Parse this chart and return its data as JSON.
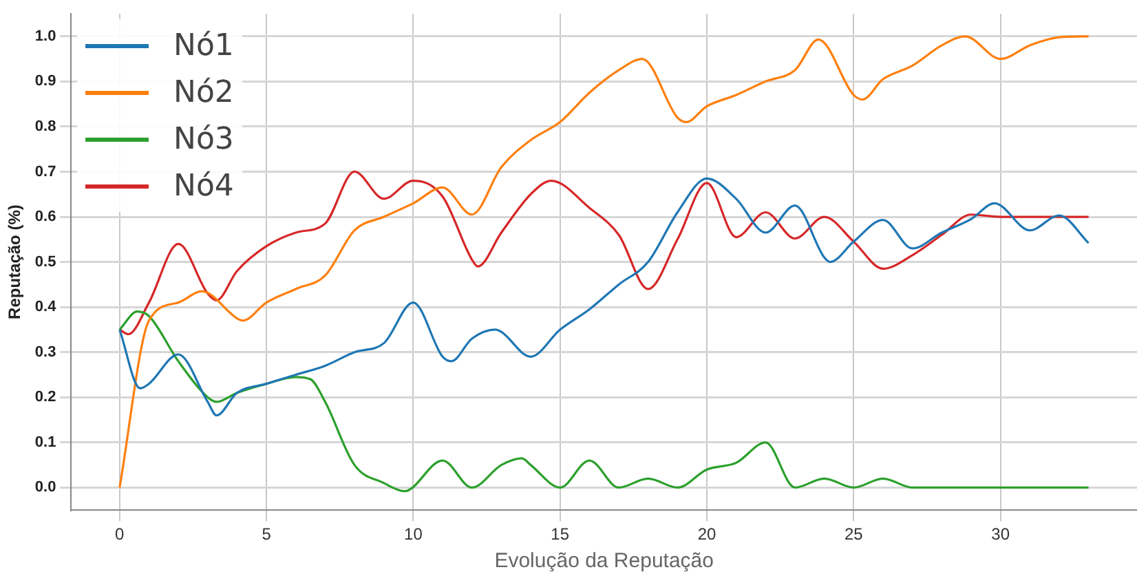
{
  "chart_data": {
    "type": "line",
    "xlabel": "Evolução da Reputação",
    "ylabel": "Reputação (%)",
    "xlim": [
      -1.65,
      34.65
    ],
    "ylim": [
      -0.05,
      1.05
    ],
    "xticks": [
      0,
      5,
      10,
      15,
      20,
      25,
      30
    ],
    "yticks": [
      {
        "value": 0,
        "label": "0.0"
      },
      {
        "value": 0.1,
        "label": "0.1"
      },
      {
        "value": 0.2,
        "label": "0.2"
      },
      {
        "value": 0.3,
        "label": "0.3"
      },
      {
        "value": 0.4,
        "label": "0.4"
      },
      {
        "value": 0.5,
        "label": "0.5"
      },
      {
        "value": 0.6,
        "label": "0.6"
      },
      {
        "value": 0.7,
        "label": "0.7"
      },
      {
        "value": 0.8,
        "label": "0.8"
      },
      {
        "value": 0.9,
        "label": "0.9"
      },
      {
        "value": 1,
        "label": "1.0"
      }
    ],
    "grid": true,
    "legend": "top left",
    "marker": "none",
    "line_style": "solid",
    "series": [
      {
        "name": "Nó1",
        "color": "#1f77b4",
        "x": [
          0,
          0.7,
          1,
          2,
          3,
          3.3,
          4,
          5,
          6,
          7,
          8,
          9,
          10,
          11,
          11.3,
          12,
          12.8,
          13,
          14,
          15,
          16,
          17,
          18,
          19,
          20,
          21,
          22,
          23,
          24,
          24.2,
          25,
          26,
          27,
          28,
          29,
          29.8,
          31,
          32,
          33
        ],
        "values": [
          0.35,
          0.22,
          0.23,
          0.295,
          0.19,
          0.16,
          0.21,
          0.23,
          0.25,
          0.27,
          0.3,
          0.32,
          0.41,
          0.29,
          0.28,
          0.33,
          0.35,
          0.345,
          0.29,
          0.35,
          0.395,
          0.45,
          0.5,
          0.61,
          0.685,
          0.64,
          0.565,
          0.625,
          0.51,
          0.5,
          0.545,
          0.593,
          0.53,
          0.565,
          0.595,
          0.63,
          0.57,
          0.603,
          0.542
        ]
      },
      {
        "name": "Nó2",
        "color": "#ff7f0e",
        "x": [
          0,
          1,
          2,
          2.8,
          4,
          4.2,
          5,
          6,
          7,
          8,
          9,
          10,
          11,
          12,
          13,
          14,
          15,
          16,
          17,
          17.8,
          19,
          19.3,
          20,
          21,
          22,
          23,
          23.8,
          25,
          25.3,
          26,
          27,
          28,
          28.8,
          30,
          31,
          32,
          33
        ],
        "values": [
          0,
          0.37,
          0.41,
          0.435,
          0.375,
          0.37,
          0.41,
          0.44,
          0.47,
          0.57,
          0.6,
          0.63,
          0.665,
          0.605,
          0.71,
          0.77,
          0.81,
          0.875,
          0.925,
          0.95,
          0.82,
          0.81,
          0.845,
          0.87,
          0.9,
          0.925,
          0.993,
          0.87,
          0.86,
          0.905,
          0.935,
          0.98,
          1.0,
          0.95,
          0.98,
          0.998,
          1.0
        ]
      },
      {
        "name": "Nó3",
        "color": "#2ca02c",
        "x": [
          0,
          0.6,
          1,
          2,
          3,
          3.3,
          4,
          5,
          6,
          6.5,
          7,
          8,
          9,
          9.7,
          11,
          12,
          13,
          13.7,
          14,
          15,
          16,
          17,
          18,
          19,
          20,
          21,
          22,
          23,
          24,
          25,
          26,
          27,
          28,
          29,
          30,
          31,
          32,
          33
        ],
        "values": [
          0.35,
          0.39,
          0.38,
          0.28,
          0.2,
          0.19,
          0.21,
          0.23,
          0.245,
          0.24,
          0.19,
          0.05,
          0.01,
          -0.008,
          0.06,
          0,
          0.05,
          0.065,
          0.05,
          0,
          0.06,
          0,
          0.02,
          0,
          0.04,
          0.055,
          0.1,
          0,
          0.02,
          0,
          0.02,
          0,
          0,
          0,
          0,
          0,
          0,
          0
        ]
      },
      {
        "name": "Nó4",
        "color": "#d62728",
        "x": [
          0,
          0.3,
          1,
          2,
          3,
          3.3,
          4,
          5,
          6,
          7,
          8,
          9,
          10,
          11,
          12,
          12.2,
          13,
          14,
          14.7,
          16,
          17,
          18,
          19,
          20,
          21,
          22,
          23,
          24,
          25,
          26,
          27,
          28,
          29,
          30,
          31,
          32,
          33
        ],
        "values": [
          0.35,
          0.34,
          0.41,
          0.54,
          0.43,
          0.415,
          0.48,
          0.535,
          0.565,
          0.585,
          0.7,
          0.64,
          0.68,
          0.645,
          0.505,
          0.49,
          0.565,
          0.65,
          0.68,
          0.62,
          0.56,
          0.44,
          0.55,
          0.675,
          0.555,
          0.61,
          0.552,
          0.6,
          0.545,
          0.485,
          0.515,
          0.56,
          0.605,
          0.6,
          0.6,
          0.6,
          0.6
        ]
      }
    ]
  }
}
